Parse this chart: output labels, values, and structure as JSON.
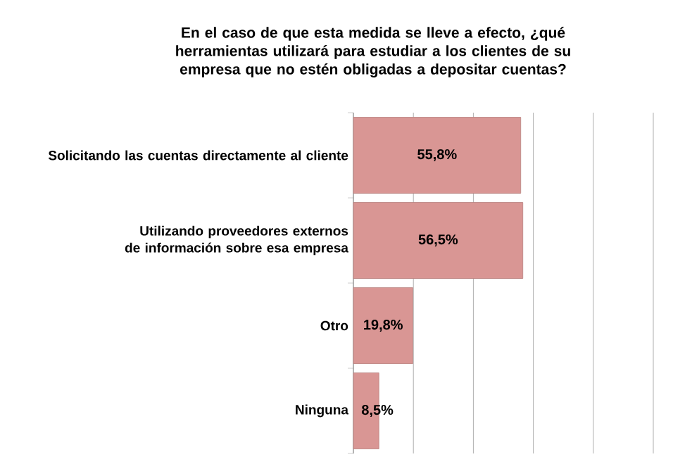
{
  "chart_data": {
    "type": "bar",
    "orientation": "horizontal",
    "title": "En el caso de que esta medida se lleve a efecto, ¿qué herramientas utilizará para estudiar a los clientes de su empresa que no estén obligadas a depositar cuentas?",
    "categories": [
      "Solicitando las cuentas directamente al cliente",
      "Utilizando proveedores externos de información sobre esa empresa",
      "Otro",
      "Ninguna"
    ],
    "values": [
      55.8,
      56.5,
      19.8,
      8.5
    ],
    "value_labels": [
      "55,8%",
      "56,5%",
      "19,8%",
      "8,5%"
    ],
    "color": "#d99694",
    "xlim": [
      0,
      100
    ],
    "grid": "x",
    "tick_labels": "y"
  }
}
